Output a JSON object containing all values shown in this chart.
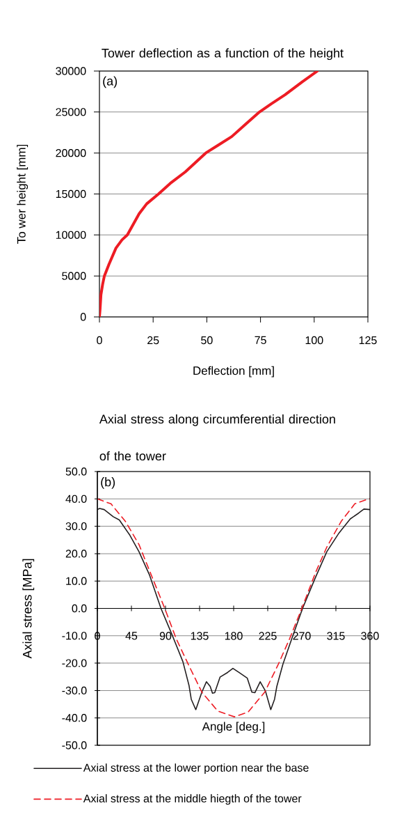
{
  "chart_data": [
    {
      "type": "line",
      "title": "Tower deflection as a function of the height",
      "xlabel": "Deflection [mm]",
      "ylabel": "To wer height [mm]",
      "annotations": [
        "(a)"
      ],
      "xlim": [
        0,
        125
      ],
      "xticks": [
        0,
        25,
        50,
        75,
        100,
        125
      ],
      "ylim": [
        0,
        30000
      ],
      "yticks": [
        0,
        5000,
        10000,
        15000,
        20000,
        25000,
        30000
      ],
      "grid": "y",
      "series": [
        {
          "color": "#ed1c24",
          "x": [
            0,
            0.3,
            0.7,
            1.5,
            2.3,
            4.4,
            7.7,
            10.5,
            13,
            18.5,
            22,
            27.5,
            33,
            40,
            49.5,
            55,
            61.6,
            68,
            74.5,
            80,
            86.4,
            94.5,
            101.5
          ],
          "values": [
            0,
            1000,
            2700,
            4000,
            5000,
            6400,
            8400,
            9400,
            10000,
            12600,
            13800,
            15000,
            16300,
            17700,
            20000,
            20900,
            22000,
            23500,
            25000,
            26000,
            27100,
            28700,
            30000
          ]
        }
      ]
    },
    {
      "type": "line",
      "title": "Axial stress along circumferential direction of the tower",
      "xlabel": "Angle [deg.]",
      "ylabel": "Axial stress [MPa]",
      "annotations": [
        "(b)"
      ],
      "xlim": [
        0,
        360
      ],
      "xticks": [
        0,
        45,
        90,
        135,
        180,
        225,
        270,
        315,
        360
      ],
      "ylim": [
        -50,
        50
      ],
      "yticks": [
        {
          "value": -50,
          "label": "-50.0"
        },
        {
          "value": -40,
          "label": "-40.0"
        },
        {
          "value": -30,
          "label": "-30.0"
        },
        {
          "value": -20,
          "label": "-20.0"
        },
        {
          "value": -10,
          "label": "-10.0"
        },
        {
          "value": 0,
          "label": "0.0"
        },
        {
          "value": 10,
          "label": "10.0"
        },
        {
          "value": 20,
          "label": "20.0"
        },
        {
          "value": 30,
          "label": "30.0"
        },
        {
          "value": 40,
          "label": "40.0"
        },
        {
          "value": 50,
          "label": "50.0"
        }
      ],
      "grid": "y",
      "legend": "bottom",
      "series": [
        {
          "name": "Axial stress at the lower portion near the base",
          "color": "#231f20",
          "line_style": "solid",
          "x": [
            0,
            3,
            9,
            21,
            29,
            43,
            55,
            69,
            84,
            98,
            113,
            121,
            124,
            130,
            138,
            144,
            149,
            152,
            155,
            162,
            172,
            179,
            187,
            198,
            204,
            208,
            215,
            222,
            229,
            234,
            237,
            245,
            257,
            271,
            288,
            303,
            319,
            334,
            345,
            352,
            360
          ],
          "values": [
            36.1,
            36.5,
            36.1,
            33.5,
            32.3,
            26.7,
            20.7,
            12.1,
            0,
            -9.2,
            -19.5,
            -28.1,
            -33.2,
            -37,
            -30.6,
            -26.8,
            -28.5,
            -31,
            -30.8,
            -25.1,
            -23.4,
            -21.9,
            -23.4,
            -25.5,
            -30.6,
            -30.8,
            -26.8,
            -30.2,
            -37,
            -33.2,
            -28.5,
            -20.4,
            -10.9,
            0,
            11.3,
            20.7,
            27.5,
            32.7,
            34.8,
            36.3,
            36.1
          ]
        },
        {
          "name": "Axial stress at the middle hiegth of the tower",
          "color": "#ed1c24",
          "line_style": "dashed",
          "x": [
            0,
            18,
            37,
            55,
            70,
            89,
            104,
            120,
            138,
            159,
            181,
            199,
            221,
            239,
            254,
            270,
            288,
            303,
            322,
            340,
            358,
            360
          ],
          "values": [
            40,
            38.2,
            31.8,
            23.3,
            13,
            0,
            -11,
            -20.4,
            -30.6,
            -37.5,
            -39.6,
            -37.9,
            -30.6,
            -20.4,
            -11,
            0,
            13,
            22.4,
            31.8,
            38.2,
            40,
            40
          ]
        }
      ]
    }
  ]
}
